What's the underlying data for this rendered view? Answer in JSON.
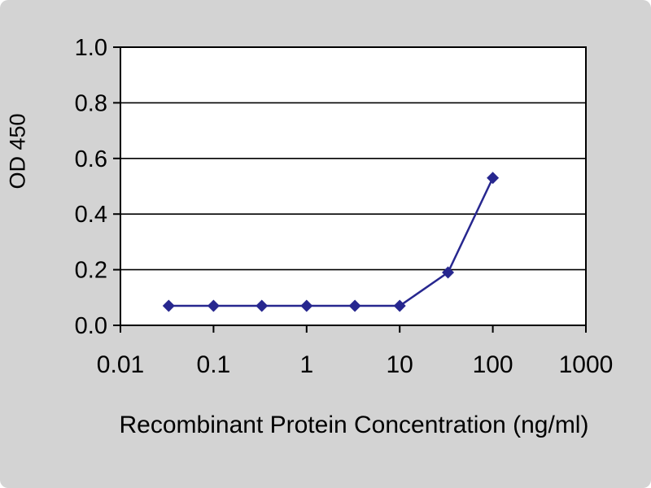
{
  "chart_data": {
    "type": "line",
    "title": "",
    "xlabel": "Recombinant Protein Concentration (ng/ml)",
    "ylabel": "OD 450",
    "x_scale": "log",
    "xlim": [
      0.01,
      1000
    ],
    "ylim": [
      0.0,
      1.0
    ],
    "x_ticks": [
      0.01,
      0.1,
      1,
      10,
      100,
      1000
    ],
    "x_tick_labels": [
      "0.01",
      "0.1",
      "1",
      "10",
      "100",
      "1000"
    ],
    "y_ticks": [
      0.0,
      0.2,
      0.4,
      0.6,
      0.8,
      1.0
    ],
    "y_tick_labels": [
      "0.0",
      "0.2",
      "0.4",
      "0.6",
      "0.8",
      "1.0"
    ],
    "grid": "horizontal",
    "legend": "none",
    "series": [
      {
        "name": "OD 450",
        "color": "#27278f",
        "marker": "diamond",
        "x": [
          0.033,
          0.1,
          0.33,
          1,
          3.3,
          10,
          33,
          100
        ],
        "y": [
          0.07,
          0.07,
          0.07,
          0.07,
          0.07,
          0.07,
          0.19,
          0.53
        ]
      }
    ]
  },
  "colors": {
    "background": "#d3d3d3",
    "plot_background": "#ffffff",
    "axis": "#000000",
    "grid": "#000000",
    "text": "#000000"
  }
}
